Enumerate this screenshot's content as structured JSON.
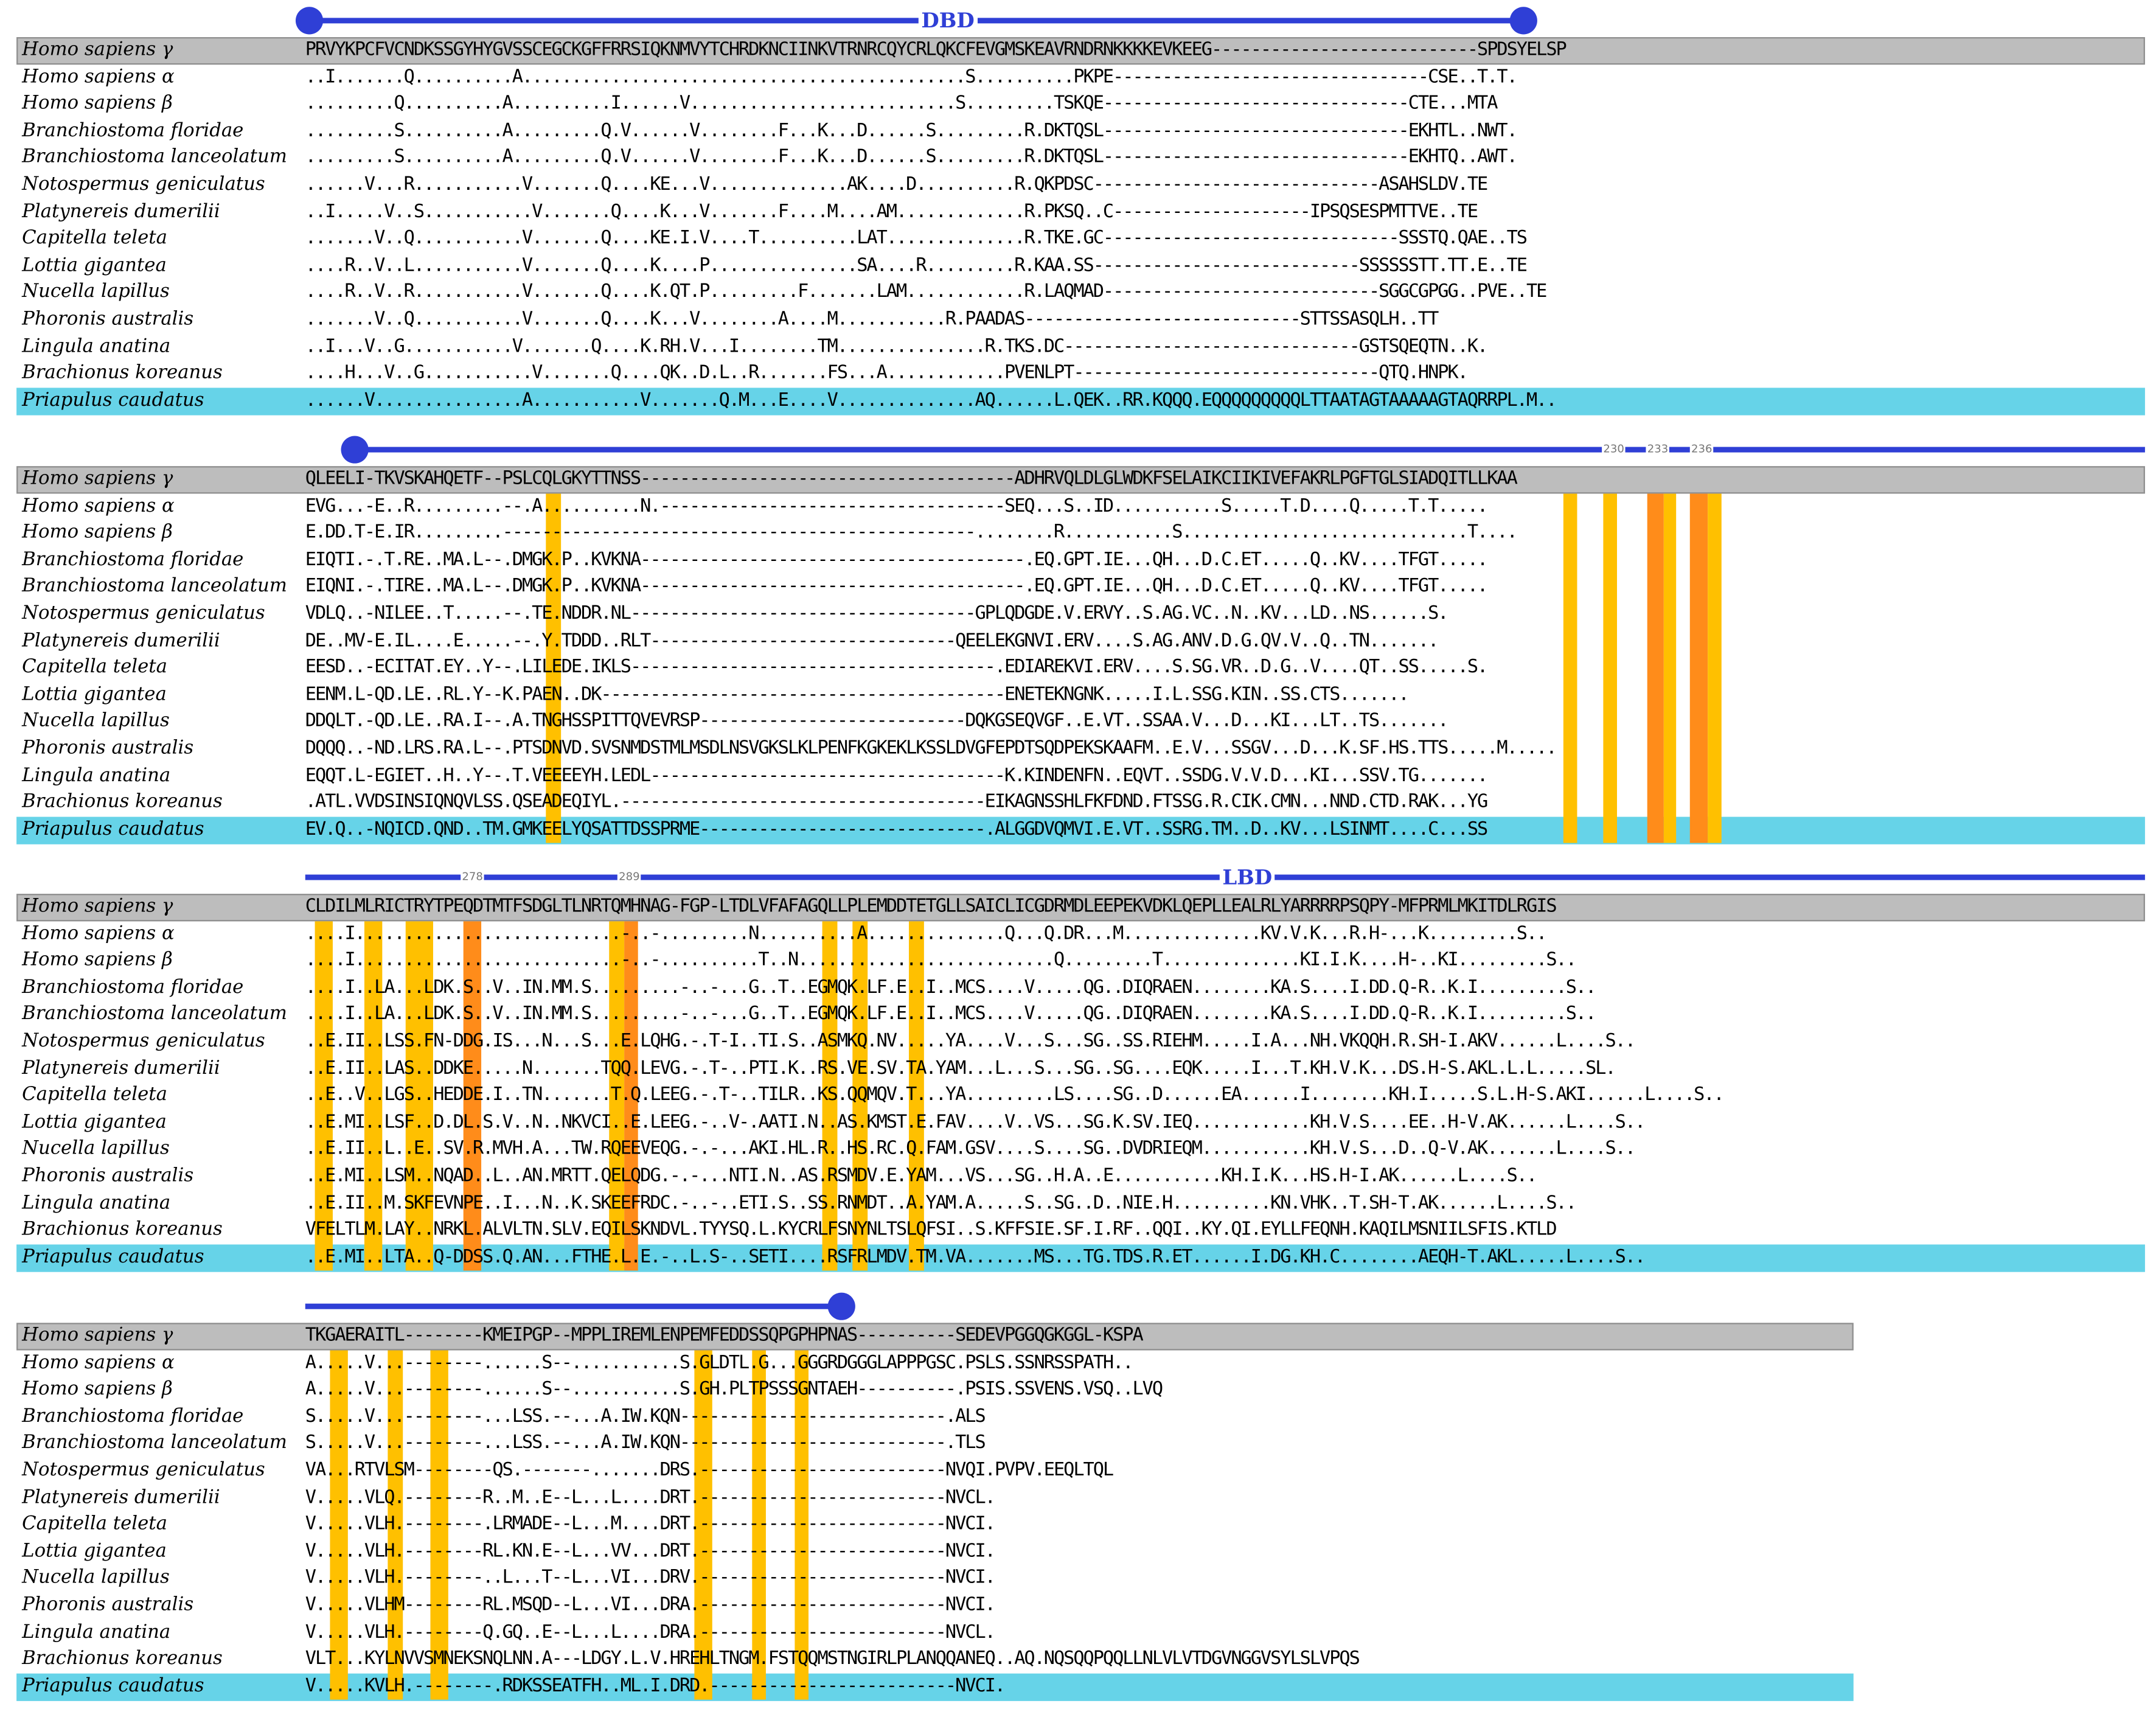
{
  "species": [
    "Homo sapiens γ",
    "Homo sapiens α",
    "Homo sapiens β",
    "Branchiostoma floridae",
    "Branchiostoma lanceolatum",
    "Notospermus geniculatus",
    "Platynereis dumerilii",
    "Capitella teleta",
    "Lottia gigantea",
    "Nucella lapillus",
    "Phoronis australis",
    "Lingula anatina",
    "Brachionus koreanus",
    "Priapulus caudatus"
  ],
  "colors": {
    "domain": "#2f3fd6",
    "reference_row": "#bdbdbd",
    "target_row": "#66d3e8",
    "conserved": "#ffc000",
    "key_residue": "#ff8c1a"
  },
  "blocks": [
    {
      "domain_label": "DBD",
      "position_labels": [],
      "seqs": [
        "PRVYKPCFVCNDKSSGYHYGVSSCEGCKGFFRRSIQKNMVYTCHRDKNCIINKVTRNRCQYCRLQKCFEVGMSKEAVRNDRNKKKKEVKEEG---------------------------SPDSYELSP",
        "..I.......Q..........A.............................................S..........PKPE--------------------------------CSE..T.T.",
        ".........Q..........A..........I......V...........................S.........TSKQE-------------------------------CTE...MTA",
        ".........S..........A.........Q.V......V........F...K...D......S.........R.DKTQSL-------------------------------EKHTL..NWT.",
        ".........S..........A.........Q.V......V........F...K...D......S.........R.DKTQSL-------------------------------EKHTQ..AWT.",
        "......V...R...........V.......Q....KE...V..............AK....D..........R.QKPDSC-----------------------------ASAHSLDV.TE",
        "..I.....V..S...........V.......Q....K...V.......F....M....AM.............R.PKSQ..C--------------------IPSQSESPMTTVE..TE",
        ".......V..Q...........V.......Q....KE.I.V....T..........LAT..............R.TKE.GC------------------------------SSSTQ.QAE..TS",
        "....R..V..L...........V.......Q....K....P...............SA....R.........R.KAA.SS---------------------------SSSSSSTT.TT.E..TE",
        "....R..V..R...........V.......Q....K.QT.P.........F.......LAM............R.LAQMAD----------------------------SGGCGPGG..PVE..TE",
        ".......V..Q...........V.......Q....K...V........A....M...........R.PAADAS----------------------------STTSSASQLH..TT",
        "..I...V..G...........V.......Q....K.RH.V...I........TM...............R.TKS.DC------------------------------GSTSQEQTN..K.",
        "....H...V..G...........V.......Q....QK..D.L..R.......FS...A............PVENLPT-------------------------------QTQ.HNPK.",
        "......V...............A...........V.......Q.M...E....V..............AQ......L.QEK..RR.KQQQ.EQQQQQQQQQLTTAATAGTAAAAAGTAQRRPL.M.."
      ]
    },
    {
      "domain_label": "",
      "position_labels": [
        "230",
        "233",
        "236"
      ],
      "seqs": [
        "QLEELI-TKVSKAHQETF--PSLCQLGKYTTNSS--------------------------------------ADHRVQLDLGLWDKFSELAIKCIIKIVEFAKRLPGFTGLSIADQITLLKAA",
        "EVG...-E..R.........--.A..........N.-----------------------------------SEQ...S..ID...........S.....T.D....Q.....T.T.....",
        "E.DD.T-E.IR.........------------------------------------------------........R...........S.............................T....",
        "EIQTI.-.T.RE..MA.L--.DMGK.P..KVKNA---------------------------------------.EQ.GPT.IE...QH...D.C.ET.....Q..KV....TFGT.....",
        "EIQNI.-.TIRE..MA.L--.DMGK.P..KVKNA---------------------------------------.EQ.GPT.IE...QH...D.C.ET.....Q..KV....TFGT.....",
        "VDLQ..-NILEE..T.....--.TE.NDDR.NL-----------------------------------GPLQDGDE.V.ERVY..S.AG.VC..N..KV...LD..NS......S.",
        "DE..MV-E.IL....E.....--.Y.TDDD..RLT-------------------------------QEELEKGNVI.ERV....S.AG.ANV.D.G.QV.V..Q..TN.......",
        "EESD..-ECITAT.EY..Y--.LILEDE.IKLS-------------------------------------.EDIAREKVI.ERV....S.SG.VR..D.G..V....QT..SS.....S.",
        "EENM.L-QD.LE..RL.Y--K.PAEN..DK-----------------------------------------ENETEKNGNK.....I.L.SSG.KIN..SS.CTS.......",
        "DDQLT.-QD.LE..RA.I--.A.TNGHSSPITTQVEVRSP---------------------------DQKGSEQVGF..E.VT..SSAA.V...D...KI...LT..TS.......",
        "DQQQ..-ND.LRS.RA.L--.PTSDNVD.SVSNMDSTMLMSDLNSVGKSLKLPENFKGKEKLKSSLDVGFEPDTSQDPEKSKAAFM..E.V...SSGV...D...K.SF.HS.TTS.....M.....",
        "EQQT.L-EGIET..H..Y--.T.VEEEEYH.LEDL------------------------------------K.KINDENFN..EQVT..SSDG.V.V.D...KI...SSV.TG.......",
        ".ATL.VVDSINSIQNQVLSS.QSEADEQIYL.-------------------------------------EIKAGNSSHLFKFDND.FTSSG.R.CIK.CMN...NND.CTD.RAK...YG",
        "EV.Q..-NQICD.QND..TM.GMKEELYQSATTDSSPRME-----------------------------.ALGGDVQMVI.E.VT..SSRG.TM..D..KV...LSINMT....C...SS"
      ]
    },
    {
      "domain_label": "LBD",
      "position_labels": [
        "278",
        "289"
      ],
      "seqs": [
        "CLDILMLRICTRYTPEQDTMTFSDGLTLNRTQMHNAG-FGP-LTDLVFAFAGQLLPLEMDDTETGLLSAICLICGDRMDLEEPEKVDKLQEPLLEALRLYARRRRPSQPY-MFPRMLMKITDLRGIS",
        "....I...........................-..-.........N..........A..............Q...Q.DR...M..............KV.V.K...R.H-...K.........S..",
        "....I...........................-..-..........T..N..........................Q.........T..............KI.I.K....H-..KI.........S..",
        "....I..LA...LDK.S..V..IN.MM.S.........-..-...G..T..EGMQK.LF.E..I..MCS....V.....QG..DIQRAEN........KA.S....I.DD.Q-R..K.I.........S..",
        "....I..LA...LDK.S..V..IN.MM.S.........-..-...G..T..EGMQK.LF.E..I..MCS....V.....QG..DIQRAEN........KA.S....I.DD.Q-R..K.I.........S..",
        "..E.II..LSS.FN-DDG.IS...N...S...E.LQHG.-.T-I..TI.S..ASMKQ.NV.....YA....V...S...SG..SS.RIEHM.....I.A...NH.VKQQH.R.SH-I.AKV......L....S..",
        "..E.II..LAS..DDKE.....N.......TQQ.LEVG.-.T-..PTI.K..RS.VE.SV.TA.YAM...L...S...SG..SG....EQK.....I...T.KH.V.K...DS.H-S.AKL.L.L.....SL.",
        "..E..V..LGS..HEDDE.I..TN.......T.Q.LEEG.-.T-..TILR..KS.QQMQV.T...YA.........LS....SG..D......EA......I........KH.I.....S.L.H-S.AKI......L....S..",
        "..E.MI..LSF..D.DL.S.V..N..NKVCI..E.LEEG.-..V-.AATI.N..AS.KMST.E.FAV....V..VS...SG.K.SV.IEQ............KH.V.S....EE..H-V.AK......L....S..",
        "..E.II..L..E..SV.R.MVH.A...TW.RQEEVEQG.-.-...AKI.HL.R..HS.RC.Q.FAM.GSV....S....SG..DVDRIEQM...........KH.V.S...D..Q-V.AK.......L....S..",
        "..E.MI..LSM..NQAD..L..AN.MRTT.QELQDG.-.-...NTI.N..AS.RSMDV.E.YAM...VS...SG..H.A..E...........KH.I.K...HS.H-I.AK......L....S..",
        "..E.II..M.SKFEVNPE..I...N..K.SKEEFRDC.-..-..ETI.S..SS.RNMDT..A.YAM.A.....S..SG..D..NIE.H..........KN.VHK..T.SH-T.AK......L....S..",
        "VFELTLM.LAY..NRKL.ALVLTN.SLV.EQILSKNDVL.TYYSQ.L.KYCRLFSNYNLTSLQFSI..S.KFFSIE.SF.I.RF..QQI..KY.QI.EYLLFEQNH.KAQILMSNIILSFIS.KTLD",
        "..E.MI..LTA..Q-DDSS.Q.AN...FTHE.L.E.-..L.S-..SETI....RSFRLMDV.TM.VA.......MS...TG.TDS.R.ET......I.DG.KH.C........AEQH-T.AKL.....L....S.."
      ]
    },
    {
      "domain_label": "",
      "position_labels": [],
      "seqs": [
        "TKGAERAITL--------KMEIPGP--MPPLIREMLENPEMFEDDSSQPGPHPNAS----------SEDEVPGGQGKGGL-KSPA",
        "A.....V...--------......S--...........S.GLDTL.G...GGGRDGGGLAPPPGSC.PSLS.SSNRSSPATH..",
        "A.....V...--------......S--...........S.GH.PLTPSSSGNTAEH----------.PSIS.SSVENS.VSQ..LVQ",
        "S.....V...--------...LSS.--...A.IW.KQN---------------------------.ALS",
        "S.....V...--------...LSS.--...A.IW.KQN---------------------------.TLS",
        "VA...RTVLSM--------QS.-------.......DRS.-------------------------NVQI.PVPV.EEQLTQL",
        "V.....VLQ.--------R..M..E--L...L....DRT.-------------------------NVCL.",
        "V.....VLH.--------.LRMADE--L...M....DRT.-------------------------NVCI.",
        "V.....VLH.--------RL.KN.E--L...VV...DRT.-------------------------NVCI.",
        "V.....VLH.--------..L...T--L...VI...DRV.-------------------------NVCI.",
        "V.....VLHM--------RL.MSQD--L...VI...DRA.-------------------------NVCI.",
        "V.....VLH.--------Q.GQ..E--L...L....DRA.-------------------------NVCL.",
        "VLT...KYLNVVSMNEKSNQLNN.A---LDGY.L.V.HREHLTNGM.FSTQQMSTNGIRLPLANQQANEQ..AQ.NQSQQPQQLLNLVLVTDGVNGGVSYLSLVPQS",
        "V.....KVLH.--------.RDKSSEATFH..ML.I.DRD.-------------------------NVCI."
      ]
    }
  ]
}
